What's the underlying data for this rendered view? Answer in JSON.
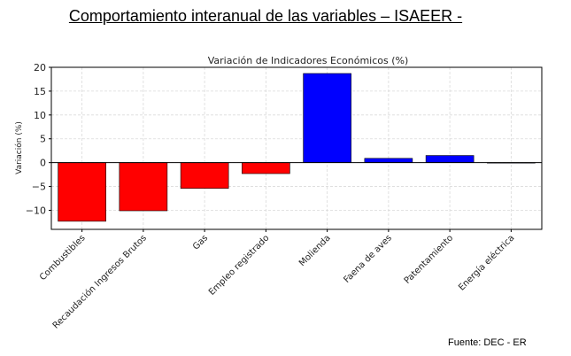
{
  "page_title": "Comportamiento interanual de las variables – ISAEER -",
  "source": "Fuente: DEC - ER",
  "colors": {
    "negative": "#ff0000",
    "positive": "#0000ff",
    "grid": "#d9d9d9",
    "axis": "#000000"
  },
  "chart_data": {
    "type": "bar",
    "title": "Variación de Indicadores Económicos (%)",
    "xlabel": "",
    "ylabel": "Variación (%)",
    "ylim": [
      -14,
      20
    ],
    "yticks": [
      -10,
      -5,
      0,
      5,
      10,
      15,
      20
    ],
    "grid": true,
    "categories": [
      "Combustibles",
      "Recaudación Ingresos Brutos",
      "Gas",
      "Empleo registrado",
      "Molienda",
      "Faena de aves",
      "Patentamiento",
      "Energía eléctrica"
    ],
    "values": [
      -12.3,
      -10.1,
      -5.4,
      -2.3,
      18.7,
      0.9,
      1.5,
      0.0
    ]
  }
}
